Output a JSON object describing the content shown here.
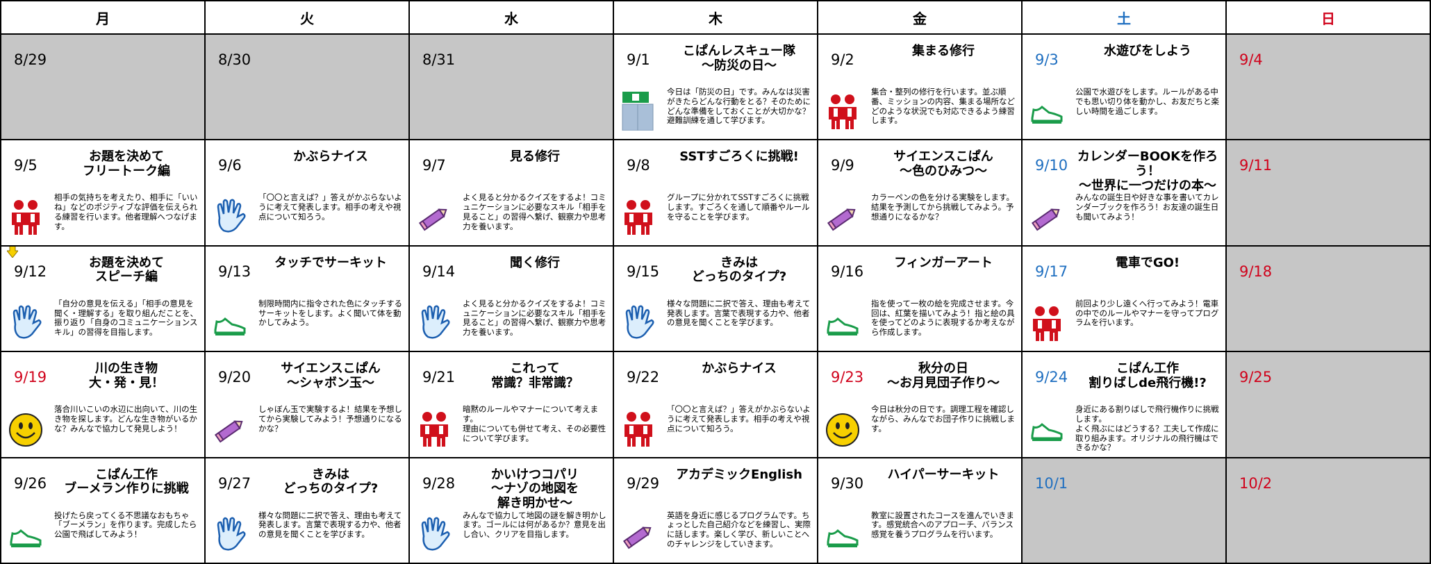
{
  "header": {
    "days": [
      "月",
      "火",
      "水",
      "木",
      "金",
      "土",
      "日"
    ]
  },
  "weeks": [
    [
      {
        "date": "8/29"
      },
      {
        "date": "8/30"
      },
      {
        "date": "8/31"
      },
      {
        "date": "9/1",
        "title": "こぱんレスキュー隊\n〜防災の日〜",
        "description": "今日は「防災の日」です。みんなは災害がきたらどんな行動をとる？そのためにどんな準備をしておくことが大切かな？避難訓練を通して学びます。"
      },
      {
        "date": "9/2",
        "title": "集まる修行",
        "description": "集合・整列の修行を行います。並ぶ順番、ミッションの内容、集まる場所などどのような状況でも対応できるよう練習します。"
      },
      {
        "date": "9/3",
        "title": "水遊びをしよう",
        "description": "公園で水遊びをします。ルールがある中でも思い切り体を動かし、お友だちと楽しい時間を過ごします。"
      },
      {
        "date": "9/4"
      }
    ],
    [
      {
        "date": "9/5",
        "title": "お題を決めて\nフリートーク編",
        "description": "相手の気持ちを考えたり、相手に「いいね」などのポジティブな評価を伝えられる練習を行います。他者理解へつなげます。"
      },
      {
        "date": "9/6",
        "title": "かぶらナイス",
        "description": "「〇〇と言えば？」答えがかぶらないように考えて発表します。相手の考えや視点について知ろう。"
      },
      {
        "date": "9/7",
        "title": "見る修行",
        "description": "よく見ると分かるクイズをするよ！コミュニケーションに必要なスキル「相手を見ること」の習得へ繋げ、観察力や思考力を養います。"
      },
      {
        "date": "9/8",
        "title": "SSTすごろくに挑戦!",
        "description": "グループに分かれてSSTすごろくに挑戦します。すごろくを通して順番やルールを守ることを学びます。"
      },
      {
        "date": "9/9",
        "title": "サイエンスこぱん\n〜色のひみつ〜",
        "description": "カラーペンの色を分ける実験をします。結果を予測してから挑戦してみよう。予想通りになるかな？"
      },
      {
        "date": "9/10",
        "title": "カレンダーBOOKを作ろう！\n〜世界に一つだけの本〜",
        "description": "みんなの誕生日や好きな事を書いてカレンダーブックを作ろう！お友達の誕生日も聞いてみよう！"
      },
      {
        "date": "9/11"
      }
    ],
    [
      {
        "date": "9/12",
        "title": "お題を決めて\nスピーチ編",
        "description": "「自分の意見を伝える」「相手の意見を聞く・理解する」を取り組んだことを、振り返り「自身のコミュニケーションスキル」の習得を目指します。"
      },
      {
        "date": "9/13",
        "title": "タッチでサーキット",
        "description": "制限時間内に指令された色にタッチするサーキットをします。よく聞いて体を動かしてみよう。"
      },
      {
        "date": "9/14",
        "title": "聞く修行",
        "description": "よく見ると分かるクイズをするよ！コミュニケーションに必要なスキル「相手を見ること」の習得へ繋げ、観察力や思考力を養います。"
      },
      {
        "date": "9/15",
        "title": "きみは\nどっちのタイプ?",
        "description": "様々な問題に二択で答え、理由も考えて発表します。言葉で表現する力や、他者の意見を聞くことを学びます。"
      },
      {
        "date": "9/16",
        "title": "フィンガーアート",
        "description": "指を使って一枚の絵を完成させます。今回は、紅葉を描いてみよう！指と絵の具を使ってどのように表現するか考えながら作成します。"
      },
      {
        "date": "9/17",
        "title": "電車でGO!",
        "description": "前回より少し遠くへ行ってみよう！電車の中でのルールやマナーを守ってプログラムを行います。"
      },
      {
        "date": "9/18"
      }
    ],
    [
      {
        "date": "9/19",
        "title": "川の生き物\n大・発・見！",
        "description": "落合川いこいの水辺に出向いて、川の生き物を探します。どんな生き物がいるかな？みんなで協力して発見しよう！"
      },
      {
        "date": "9/20",
        "title": "サイエンスこぱん\n〜シャボン玉〜",
        "description": "しゃぼん玉で実験するよ！結果を予想してから実験してみよう！予想通りになるかな？"
      },
      {
        "date": "9/21",
        "title": "これって\n常識？非常識？",
        "description": "暗黙のルールやマナーについて考えます。\n理由についても併せて考え、その必要性について学びます。"
      },
      {
        "date": "9/22",
        "title": "かぶらナイス",
        "description": "「〇〇と言えば？」答えがかぶらないように考えて発表します。相手の考えや視点について知ろう。"
      },
      {
        "date": "9/23",
        "title": "秋分の日\n〜お月見団子作り〜",
        "description": "今日は秋分の日です。調理工程を確認しながら、みんなでお団子作りに挑戦します。"
      },
      {
        "date": "9/24",
        "title": "こぱん工作\n割りばしde飛行機!?",
        "description": "身近にある割りばしで飛行機作りに挑戦します。\nよく飛ぶにはどうする？工夫して作成に取り組みます。オリジナルの飛行機はできるかな？"
      },
      {
        "date": "9/25"
      }
    ],
    [
      {
        "date": "9/26",
        "title": "こぱん工作\nブーメラン作りに挑戦",
        "description": "投げたら戻ってくる不思議なおもちゃ「ブーメラン」を作ります。完成したら公園で飛ばしてみよう！"
      },
      {
        "date": "9/27",
        "title": "きみは\nどっちのタイプ?",
        "description": "様々な問題に二択で答え、理由も考えて発表します。言葉で表現する力や、他者の意見を聞くことを学びます。"
      },
      {
        "date": "9/28",
        "title": "かいけつコパリ\n〜ナゾの地図を\n解き明かせ〜",
        "description": "みんなで協力して地図の謎を解き明かします。ゴールには何があるか？意見を出し合い、クリアを目指します。"
      },
      {
        "date": "9/29",
        "title": "アカデミックEnglish",
        "description": "英語を身近に感じるプログラムです。ちょっとした自己紹介などを練習し、実際に話します。楽しく学び、新しいことへのチャレンジをしていきます。"
      },
      {
        "date": "9/30",
        "title": "ハイパーサーキット",
        "description": "教室に設置されたコースを進んでいきます。感覚統合へのアプローチ、バランス感覚を養うプログラムを行います。"
      },
      {
        "date": "10/1"
      },
      {
        "date": "10/2"
      }
    ]
  ]
}
